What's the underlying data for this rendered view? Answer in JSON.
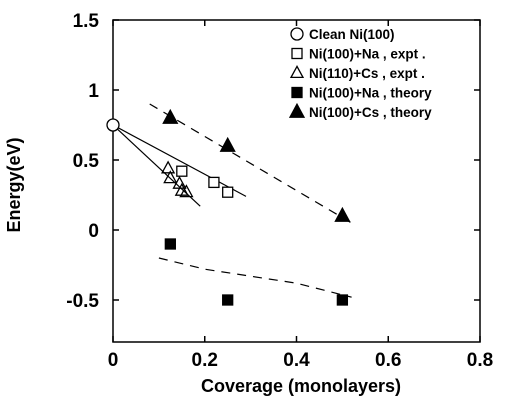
{
  "chart_data": {
    "type": "scatter",
    "title": "",
    "xlabel": "Coverage (monolayers)",
    "ylabel": "Energy(eV)",
    "xlim": [
      0,
      0.8
    ],
    "ylim": [
      -0.8,
      1.5
    ],
    "x_ticks": [
      0,
      0.2,
      0.4,
      0.6,
      0.8
    ],
    "x_tick_labels": [
      "0",
      "0.2",
      "0.4",
      "0.6",
      "0.8"
    ],
    "y_ticks": [
      -0.5,
      0,
      0.5,
      1,
      1.5
    ],
    "y_tick_labels": [
      "-0.5",
      "0",
      "0.5",
      "1",
      "1.5"
    ],
    "grid": false,
    "legend_position": "top-right",
    "series": [
      {
        "name": "Clean Ni(100)",
        "marker": "open-circle",
        "points": [
          [
            0,
            0.75
          ]
        ]
      },
      {
        "name": "Ni(100)+Na , expt .",
        "marker": "open-square",
        "points": [
          [
            0.15,
            0.42
          ],
          [
            0.22,
            0.34
          ],
          [
            0.25,
            0.27
          ]
        ]
      },
      {
        "name": "Ni(110)+Cs , expt .",
        "marker": "open-triangle",
        "points": [
          [
            0.12,
            0.44
          ],
          [
            0.125,
            0.37
          ],
          [
            0.145,
            0.33
          ],
          [
            0.15,
            0.28
          ],
          [
            0.16,
            0.27
          ]
        ]
      },
      {
        "name": "Ni(100)+Na , theory",
        "marker": "filled-square",
        "points": [
          [
            0.125,
            -0.1
          ],
          [
            0.25,
            -0.5
          ],
          [
            0.5,
            -0.5
          ]
        ]
      },
      {
        "name": "Ni(100)+Cs , theory",
        "marker": "filled-triangle",
        "points": [
          [
            0.125,
            0.8
          ],
          [
            0.25,
            0.6
          ],
          [
            0.5,
            0.1
          ]
        ]
      }
    ],
    "lines": [
      {
        "style": "solid",
        "points": [
          [
            0,
            0.75
          ],
          [
            0.29,
            0.24
          ]
        ]
      },
      {
        "style": "solid",
        "points": [
          [
            0,
            0.75
          ],
          [
            0.19,
            0.17
          ]
        ]
      },
      {
        "style": "dashed",
        "points": [
          [
            0.08,
            0.9
          ],
          [
            0.52,
            0.05
          ]
        ]
      },
      {
        "style": "dashed",
        "points": [
          [
            0.1,
            -0.2
          ],
          [
            0.2,
            -0.28
          ],
          [
            0.3,
            -0.33
          ],
          [
            0.4,
            -0.38
          ],
          [
            0.52,
            -0.48
          ]
        ]
      }
    ]
  }
}
